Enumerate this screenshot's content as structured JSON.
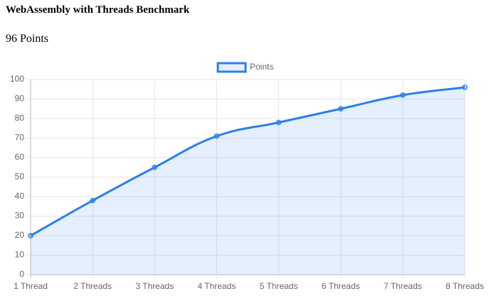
{
  "heading": "WebAssembly with Threads Benchmark",
  "score": "96 Points",
  "chart_data": {
    "type": "line",
    "categories": [
      "1 Thread",
      "2 Threads",
      "3 Threads",
      "4 Threads",
      "5 Threads",
      "6 Threads",
      "7 Threads",
      "8 Threads"
    ],
    "series": [
      {
        "name": "Points",
        "color": "#2b7fec",
        "values": [
          20,
          38,
          55,
          71,
          78,
          85,
          92,
          96
        ]
      }
    ],
    "ylim": [
      0,
      100
    ],
    "yticks": [
      0,
      10,
      20,
      30,
      40,
      50,
      60,
      70,
      80,
      90,
      100
    ],
    "grid": true,
    "fill": true,
    "legend": "top"
  }
}
